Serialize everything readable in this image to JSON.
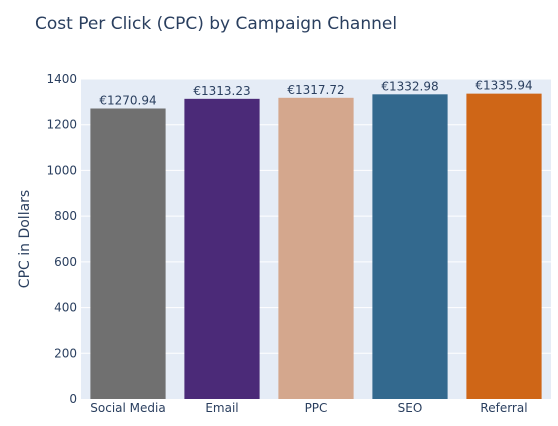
{
  "chart_data": {
    "type": "bar",
    "title": "Cost Per Click (CPC) by Campaign Channel",
    "xlabel": "",
    "ylabel": "CPC in Dollars",
    "categories": [
      "Social Media",
      "Email",
      "PPC",
      "SEO",
      "Referral"
    ],
    "values": [
      1270.94,
      1313.23,
      1317.72,
      1332.98,
      1335.94
    ],
    "value_labels": [
      "€1270.94",
      "€1313.23",
      "€1317.72",
      "€1332.98",
      "€1335.94"
    ],
    "colors": [
      "#707070",
      "#4b2a78",
      "#d4a78d",
      "#33698e",
      "#cf6617"
    ],
    "ylim": [
      0,
      1400
    ],
    "yticks": [
      0,
      200,
      400,
      600,
      800,
      1000,
      1200,
      1400
    ],
    "grid": true,
    "background": "#e5ecf6",
    "legend": "none"
  }
}
